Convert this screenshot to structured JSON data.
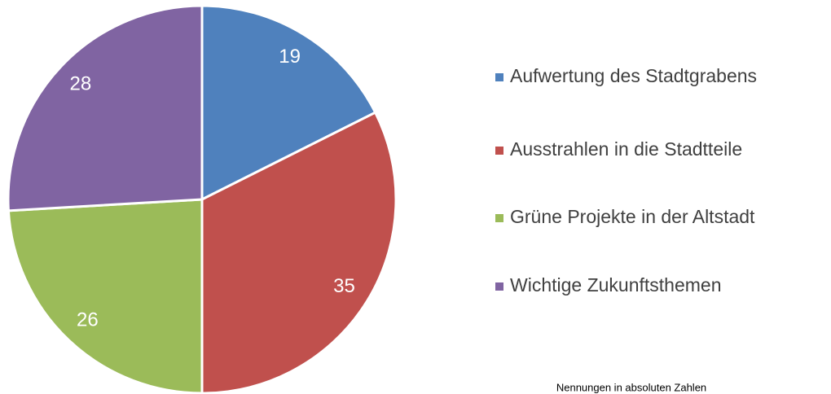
{
  "chart_data": {
    "type": "pie",
    "categories": [
      "Aufwertung des Stadtgrabens",
      "Ausstrahlen in die Stadtteile",
      "Grüne Projekte in der Altstadt",
      "Wichtige Zukunftsthemen"
    ],
    "values": [
      19,
      35,
      26,
      28
    ],
    "colors": [
      "#4f81bd",
      "#c0504d",
      "#9bbb59",
      "#8064a2"
    ],
    "legend": "right",
    "annotation": "Nennungen in absoluten Zahlen"
  }
}
